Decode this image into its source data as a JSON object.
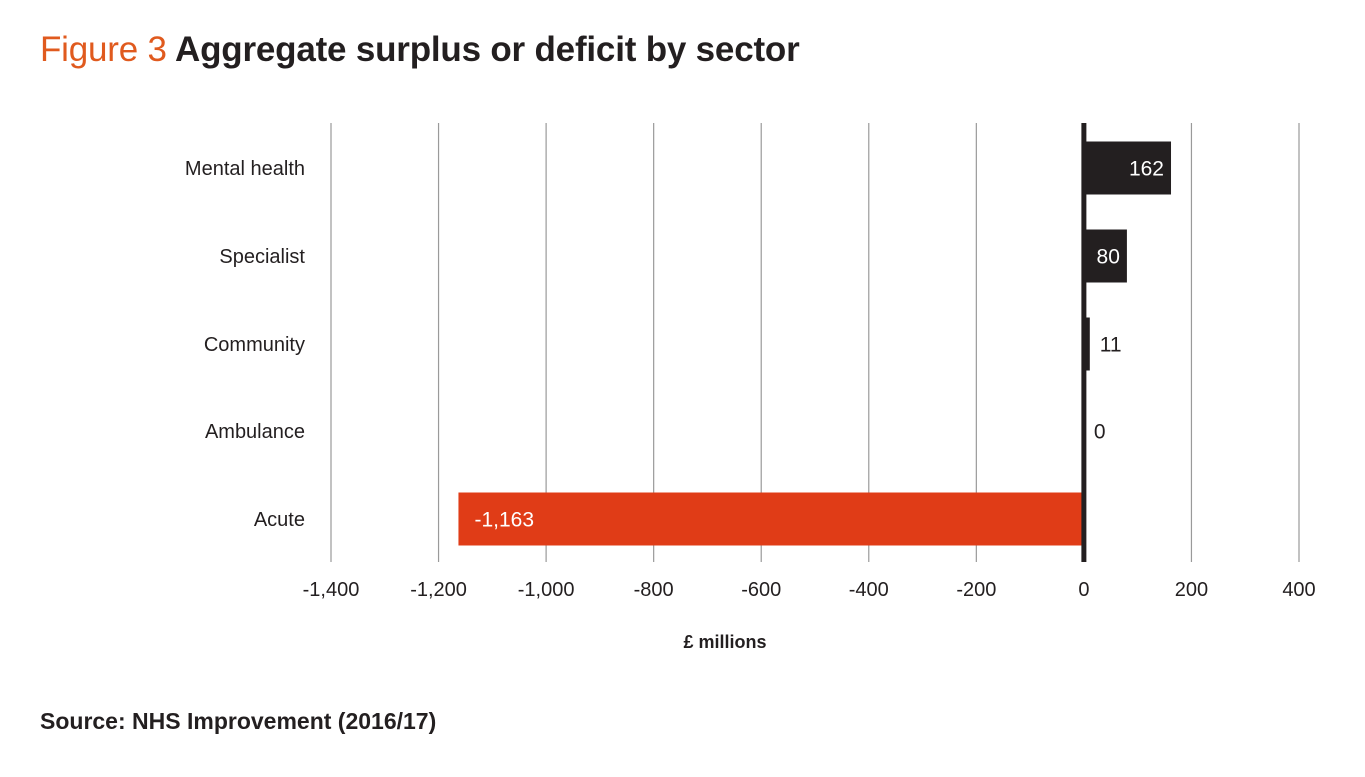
{
  "figure": {
    "label": "Figure 3",
    "title": "Aggregate surplus or deficit by sector"
  },
  "chart_data": {
    "type": "bar",
    "orientation": "horizontal",
    "categories": [
      "Mental health",
      "Specialist",
      "Community",
      "Ambulance",
      "Acute"
    ],
    "values": [
      162,
      80,
      11,
      0,
      -1163
    ],
    "value_labels": [
      "162",
      "80",
      "11",
      "0",
      "-1,163"
    ],
    "xlabel": "£ millions",
    "ylabel": "",
    "xlim": [
      -1400,
      400
    ],
    "x_ticks": [
      -1400,
      -1200,
      -1000,
      -800,
      -600,
      -400,
      -200,
      0,
      200,
      400
    ],
    "x_tick_labels": [
      "-1,400",
      "-1,200",
      "-1,000",
      "-800",
      "-600",
      "-400",
      "-200",
      "0",
      "200",
      "400"
    ],
    "grid": "vertical",
    "legend": "none",
    "colors": {
      "positive": "#231f20",
      "negative": "#e03c17",
      "grid": "#9a9a9a",
      "label_inside": "#ffffff",
      "label_outside": "#231f20"
    }
  },
  "source": "Source: NHS Improvement (2016/17)"
}
